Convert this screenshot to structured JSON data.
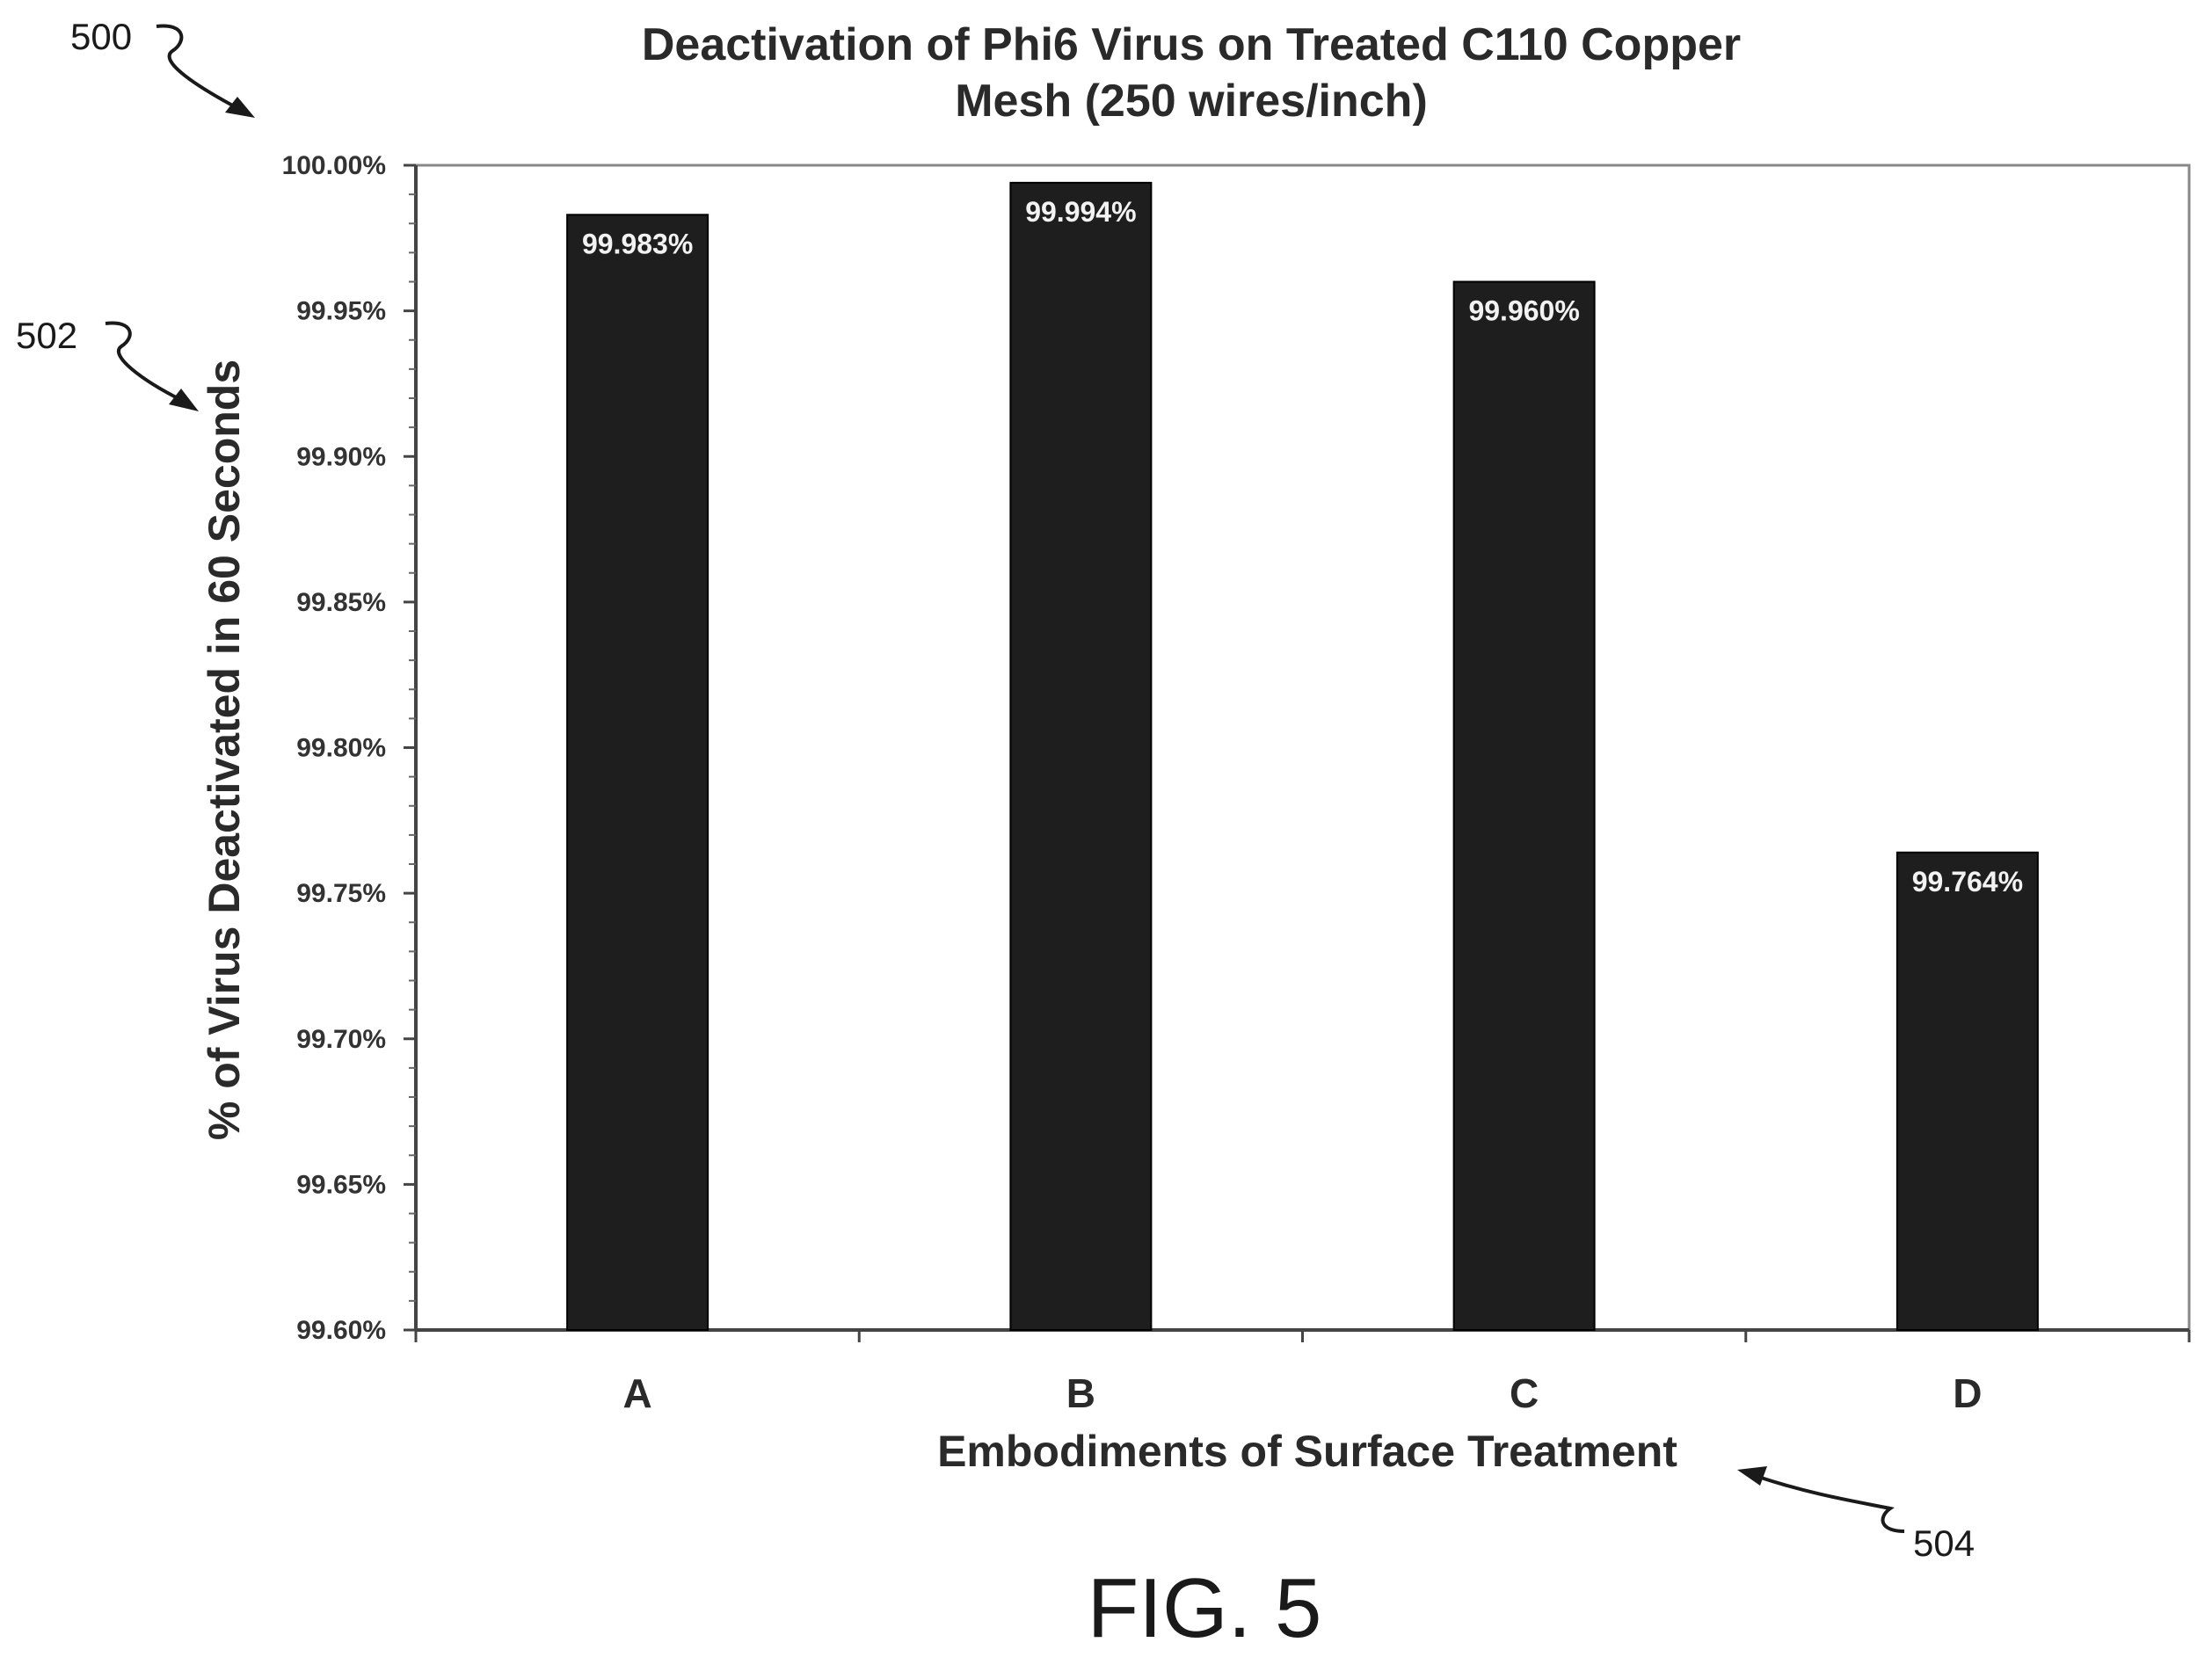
{
  "chart_data": {
    "type": "bar",
    "title_lines": [
      "Deactivation of Phi6 Virus on Treated C110 Copper",
      "Mesh (250 wires/inch)"
    ],
    "xlabel": "Embodiments of Surface Treatment",
    "ylabel": "% of Virus Deactivated in 60 Seconds",
    "categories": [
      "A",
      "B",
      "C",
      "D"
    ],
    "values": [
      99.983,
      99.994,
      99.96,
      99.764
    ],
    "data_labels": [
      "99.983%",
      "99.994%",
      "99.960%",
      "99.764%"
    ],
    "ylim": [
      99.6,
      100.0
    ],
    "yticks": [
      99.6,
      99.65,
      99.7,
      99.75,
      99.8,
      99.85,
      99.9,
      99.95,
      100.0
    ],
    "ytick_labels": [
      "99.60%",
      "99.65%",
      "99.70%",
      "99.75%",
      "99.80%",
      "99.85%",
      "99.90%",
      "99.95%",
      "100.00%"
    ],
    "grid": false,
    "bar_color": "#1e1e1e"
  },
  "annotations": {
    "ref_500": "500",
    "ref_502": "502",
    "ref_504": "504",
    "figure_label": "FIG. 5"
  }
}
